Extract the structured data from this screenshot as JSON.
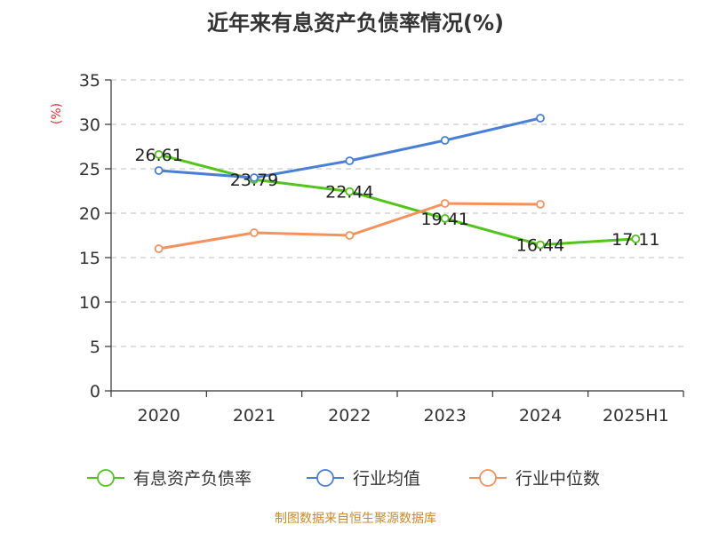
{
  "chart_data": {
    "type": "line",
    "title": "近年来有息资产负债率情况(%)",
    "ylabel": "(%)",
    "categories": [
      "2020",
      "2021",
      "2022",
      "2023",
      "2024",
      "2025H1"
    ],
    "yticks": [
      "0",
      "5",
      "10",
      "15",
      "20",
      "25",
      "30",
      "35"
    ],
    "ylim": [
      0,
      35
    ],
    "grid": true,
    "legend_position": "bottom",
    "series": [
      {
        "name": "有息资产负债率",
        "color": "#52c41a",
        "values": [
          26.61,
          23.79,
          22.44,
          19.41,
          16.44,
          17.11
        ],
        "labels": [
          "26.61",
          "23.79",
          "22.44",
          "19.41",
          "16.44",
          "17.11"
        ]
      },
      {
        "name": "行业均值",
        "color": "#4a7fd6",
        "values": [
          24.8,
          24.0,
          25.9,
          28.2,
          30.7,
          null
        ]
      },
      {
        "name": "行业中位数",
        "color": "#f5915d",
        "values": [
          16.0,
          17.8,
          17.5,
          21.1,
          21.0,
          null
        ]
      }
    ],
    "source": "制图数据来自恒生聚源数据库"
  }
}
